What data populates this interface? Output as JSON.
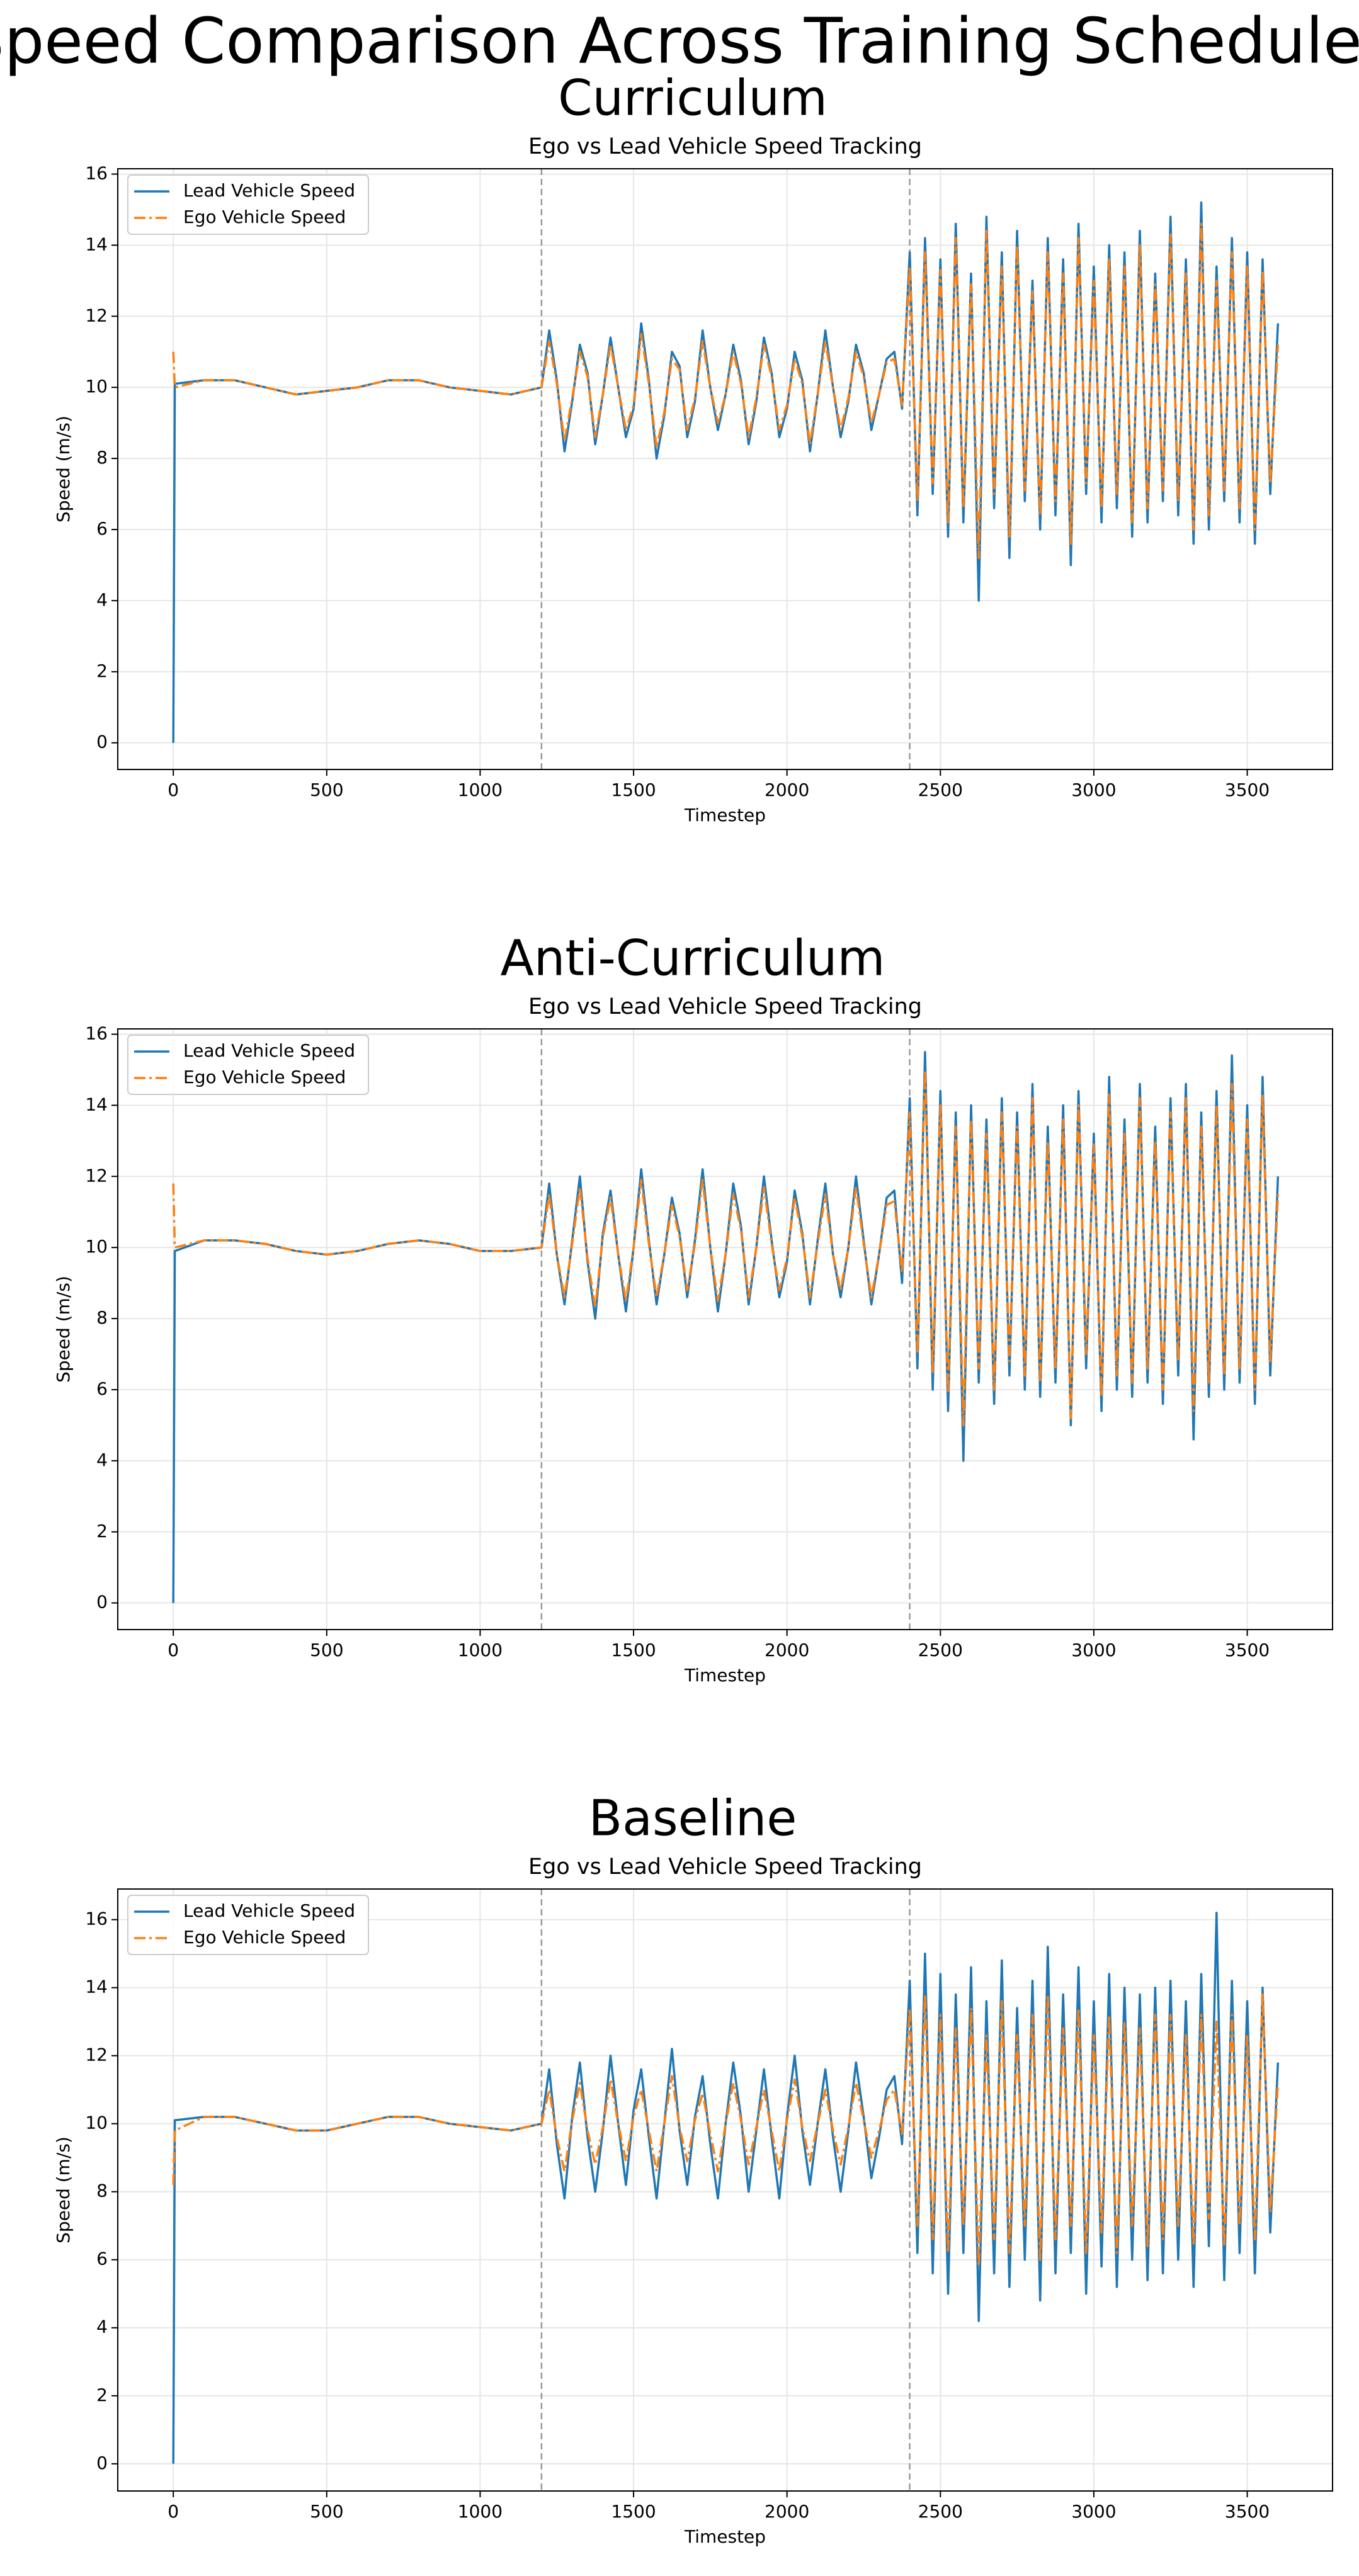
{
  "title": "Speed Comparison Across Training Schedules",
  "chart_data": [
    {
      "type": "line",
      "title": "Curriculum",
      "subtitle": "Ego vs Lead Vehicle Speed Tracking",
      "xlabel": "Timestep",
      "ylabel": "Speed (m/s)",
      "x": [
        0,
        5,
        100,
        200,
        300,
        400,
        500,
        600,
        700,
        800,
        900,
        1000,
        1100,
        1200,
        1225,
        1250,
        1275,
        1300,
        1325,
        1350,
        1375,
        1400,
        1425,
        1450,
        1475,
        1500,
        1525,
        1550,
        1575,
        1600,
        1625,
        1650,
        1675,
        1700,
        1725,
        1750,
        1775,
        1800,
        1825,
        1850,
        1875,
        1900,
        1925,
        1950,
        1975,
        2000,
        2025,
        2050,
        2075,
        2100,
        2125,
        2150,
        2175,
        2200,
        2225,
        2250,
        2275,
        2300,
        2325,
        2350,
        2375,
        2400,
        2425,
        2450,
        2475,
        2500,
        2525,
        2550,
        2575,
        2600,
        2625,
        2650,
        2675,
        2700,
        2725,
        2750,
        2775,
        2800,
        2825,
        2850,
        2875,
        2900,
        2925,
        2950,
        2975,
        3000,
        3025,
        3050,
        3075,
        3100,
        3125,
        3150,
        3175,
        3200,
        3225,
        3250,
        3275,
        3300,
        3325,
        3350,
        3375,
        3400,
        3425,
        3450,
        3475,
        3500,
        3525,
        3550,
        3575,
        3600
      ],
      "series": [
        {
          "name": "Lead Vehicle Speed",
          "color": "#1f77b4",
          "linestyle": "solid",
          "values": [
            0,
            10.1,
            10.2,
            10.2,
            10.0,
            9.8,
            9.9,
            10.0,
            10.2,
            10.2,
            10.0,
            9.9,
            9.8,
            10.0,
            11.6,
            10.2,
            8.2,
            9.6,
            11.2,
            10.4,
            8.4,
            9.8,
            11.4,
            10.0,
            8.6,
            9.4,
            11.8,
            10.2,
            8.0,
            9.2,
            11.0,
            10.6,
            8.6,
            9.6,
            11.6,
            10.0,
            8.8,
            9.8,
            11.2,
            10.2,
            8.4,
            9.6,
            11.4,
            10.4,
            8.6,
            9.4,
            11.0,
            10.2,
            8.2,
            9.8,
            11.6,
            10.0,
            8.6,
            9.6,
            11.2,
            10.4,
            8.8,
            9.8,
            10.8,
            11.0,
            9.4,
            13.8,
            6.4,
            14.2,
            7.0,
            13.6,
            5.8,
            14.6,
            6.2,
            13.2,
            4.0,
            14.8,
            6.6,
            13.8,
            5.2,
            14.4,
            6.8,
            13.0,
            6.0,
            14.2,
            6.4,
            13.6,
            5.0,
            14.6,
            7.0,
            13.4,
            6.2,
            14.0,
            6.6,
            13.8,
            5.8,
            14.4,
            6.2,
            13.2,
            6.8,
            14.8,
            6.4,
            13.6,
            5.6,
            15.2,
            6.0,
            13.4,
            6.8,
            14.2,
            6.2,
            13.8,
            5.6,
            13.6,
            7.0,
            11.8
          ]
        },
        {
          "name": "Ego Vehicle Speed",
          "color": "#ff7f0e",
          "linestyle": "dashdot",
          "values": [
            11.0,
            10.0,
            10.2,
            10.2,
            10.0,
            9.8,
            9.9,
            10.0,
            10.2,
            10.2,
            10.0,
            9.9,
            9.8,
            10.0,
            11.3,
            10.1,
            8.5,
            9.7,
            11.0,
            10.3,
            8.6,
            9.8,
            11.2,
            10.0,
            8.8,
            9.5,
            11.5,
            10.1,
            8.3,
            9.3,
            10.8,
            10.5,
            8.8,
            9.7,
            11.3,
            10.0,
            9.0,
            9.8,
            11.0,
            10.1,
            8.6,
            9.7,
            11.2,
            10.3,
            8.8,
            9.5,
            10.8,
            10.1,
            8.4,
            9.8,
            11.3,
            10.0,
            8.8,
            9.7,
            11.0,
            10.3,
            9.0,
            9.8,
            10.7,
            10.8,
            9.5,
            13.4,
            6.8,
            13.8,
            7.3,
            13.3,
            6.2,
            14.2,
            6.6,
            12.9,
            5.2,
            14.4,
            7.0,
            13.4,
            5.8,
            14.0,
            7.1,
            12.7,
            6.4,
            13.8,
            6.8,
            13.2,
            5.6,
            14.2,
            7.3,
            13.0,
            6.6,
            13.6,
            7.0,
            13.4,
            6.2,
            14.0,
            6.6,
            12.9,
            7.1,
            14.3,
            6.8,
            13.2,
            6.0,
            14.6,
            6.4,
            13.0,
            7.1,
            13.8,
            6.6,
            13.4,
            6.0,
            13.3,
            7.3,
            11.2
          ]
        }
      ],
      "xlim": [
        -181,
        3778
      ],
      "ylim": [
        -0.75,
        16.15
      ],
      "xticks": [
        0,
        500,
        1000,
        1500,
        2000,
        2500,
        3000,
        3500
      ],
      "yticks": [
        0,
        2,
        4,
        6,
        8,
        10,
        12,
        14,
        16
      ],
      "vlines": [
        1200,
        2400
      ],
      "grid": true,
      "legend": "upper left"
    },
    {
      "type": "line",
      "title": "Anti-Curriculum",
      "subtitle": "Ego vs Lead Vehicle Speed Tracking",
      "xlabel": "Timestep",
      "ylabel": "Speed (m/s)",
      "x": [
        0,
        5,
        100,
        200,
        300,
        400,
        500,
        600,
        700,
        800,
        900,
        1000,
        1100,
        1200,
        1225,
        1250,
        1275,
        1300,
        1325,
        1350,
        1375,
        1400,
        1425,
        1450,
        1475,
        1500,
        1525,
        1550,
        1575,
        1600,
        1625,
        1650,
        1675,
        1700,
        1725,
        1750,
        1775,
        1800,
        1825,
        1850,
        1875,
        1900,
        1925,
        1950,
        1975,
        2000,
        2025,
        2050,
        2075,
        2100,
        2125,
        2150,
        2175,
        2200,
        2225,
        2250,
        2275,
        2300,
        2325,
        2350,
        2375,
        2400,
        2425,
        2450,
        2475,
        2500,
        2525,
        2550,
        2575,
        2600,
        2625,
        2650,
        2675,
        2700,
        2725,
        2750,
        2775,
        2800,
        2825,
        2850,
        2875,
        2900,
        2925,
        2950,
        2975,
        3000,
        3025,
        3050,
        3075,
        3100,
        3125,
        3150,
        3175,
        3200,
        3225,
        3250,
        3275,
        3300,
        3325,
        3350,
        3375,
        3400,
        3425,
        3450,
        3475,
        3500,
        3525,
        3550,
        3575,
        3600
      ],
      "series": [
        {
          "name": "Lead Vehicle Speed",
          "color": "#1f77b4",
          "linestyle": "solid",
          "values": [
            0,
            9.9,
            10.2,
            10.2,
            10.1,
            9.9,
            9.8,
            9.9,
            10.1,
            10.2,
            10.1,
            9.9,
            9.9,
            10.0,
            11.8,
            9.8,
            8.4,
            10.2,
            12.0,
            9.6,
            8.0,
            10.4,
            11.6,
            9.8,
            8.2,
            10.0,
            12.2,
            10.2,
            8.4,
            9.8,
            11.4,
            10.4,
            8.6,
            10.2,
            12.2,
            10.0,
            8.2,
            9.8,
            11.8,
            10.6,
            8.4,
            10.0,
            12.0,
            10.2,
            8.6,
            9.6,
            11.6,
            10.4,
            8.4,
            10.2,
            11.8,
            9.8,
            8.6,
            10.0,
            12.0,
            10.2,
            8.4,
            9.8,
            11.4,
            11.6,
            9.0,
            14.2,
            6.6,
            15.5,
            6.0,
            14.4,
            5.4,
            13.8,
            4.0,
            14.0,
            6.2,
            13.6,
            5.6,
            14.2,
            6.4,
            13.8,
            6.0,
            14.6,
            5.8,
            13.4,
            6.2,
            14.0,
            5.0,
            14.4,
            6.6,
            13.2,
            5.4,
            14.8,
            6.0,
            13.6,
            5.8,
            14.6,
            6.2,
            13.4,
            5.6,
            14.2,
            6.4,
            14.6,
            4.6,
            13.8,
            5.8,
            14.4,
            6.0,
            15.4,
            6.2,
            14.0,
            5.6,
            14.8,
            6.4,
            12.0
          ]
        },
        {
          "name": "Ego Vehicle Speed",
          "color": "#ff7f0e",
          "linestyle": "dashdot",
          "values": [
            11.8,
            10.0,
            10.2,
            10.2,
            10.1,
            9.9,
            9.8,
            9.9,
            10.1,
            10.2,
            10.1,
            9.9,
            9.9,
            10.0,
            11.5,
            9.8,
            8.6,
            10.1,
            11.7,
            9.7,
            8.3,
            10.3,
            11.4,
            9.8,
            8.5,
            10.0,
            11.9,
            10.1,
            8.6,
            9.8,
            11.2,
            10.3,
            8.8,
            10.1,
            11.9,
            10.0,
            8.5,
            9.8,
            11.5,
            10.5,
            8.6,
            10.0,
            11.7,
            10.1,
            8.8,
            9.7,
            11.4,
            10.3,
            8.6,
            10.1,
            11.5,
            9.8,
            8.8,
            10.0,
            11.7,
            10.1,
            8.6,
            9.8,
            11.2,
            11.3,
            9.3,
            13.8,
            7.0,
            15.0,
            6.5,
            14.0,
            5.9,
            13.4,
            5.0,
            13.6,
            6.6,
            13.2,
            6.0,
            13.8,
            6.8,
            13.4,
            6.4,
            14.2,
            6.2,
            13.0,
            6.6,
            13.6,
            5.2,
            14.0,
            7.0,
            12.9,
            5.8,
            14.3,
            6.4,
            13.2,
            6.2,
            14.2,
            6.6,
            13.0,
            6.0,
            13.8,
            6.8,
            14.2,
            5.4,
            13.4,
            6.2,
            14.0,
            6.4,
            14.6,
            6.6,
            13.6,
            6.0,
            14.3,
            6.8,
            11.5
          ]
        }
      ],
      "xlim": [
        -181,
        3778
      ],
      "ylim": [
        -0.75,
        16.15
      ],
      "xticks": [
        0,
        500,
        1000,
        1500,
        2000,
        2500,
        3000,
        3500
      ],
      "yticks": [
        0,
        2,
        4,
        6,
        8,
        10,
        12,
        14,
        16
      ],
      "vlines": [
        1200,
        2400
      ],
      "grid": true,
      "legend": "upper left"
    },
    {
      "type": "line",
      "title": "Baseline",
      "subtitle": "Ego vs Lead Vehicle Speed Tracking",
      "xlabel": "Timestep",
      "ylabel": "Speed (m/s)",
      "x": [
        0,
        5,
        100,
        200,
        300,
        400,
        500,
        600,
        700,
        800,
        900,
        1000,
        1100,
        1200,
        1225,
        1250,
        1275,
        1300,
        1325,
        1350,
        1375,
        1400,
        1425,
        1450,
        1475,
        1500,
        1525,
        1550,
        1575,
        1600,
        1625,
        1650,
        1675,
        1700,
        1725,
        1750,
        1775,
        1800,
        1825,
        1850,
        1875,
        1900,
        1925,
        1950,
        1975,
        2000,
        2025,
        2050,
        2075,
        2100,
        2125,
        2150,
        2175,
        2200,
        2225,
        2250,
        2275,
        2300,
        2325,
        2350,
        2375,
        2400,
        2425,
        2450,
        2475,
        2500,
        2525,
        2550,
        2575,
        2600,
        2625,
        2650,
        2675,
        2700,
        2725,
        2750,
        2775,
        2800,
        2825,
        2850,
        2875,
        2900,
        2925,
        2950,
        2975,
        3000,
        3025,
        3050,
        3075,
        3100,
        3125,
        3150,
        3175,
        3200,
        3225,
        3250,
        3275,
        3300,
        3325,
        3350,
        3375,
        3400,
        3425,
        3450,
        3475,
        3500,
        3525,
        3550,
        3575,
        3600
      ],
      "series": [
        {
          "name": "Lead Vehicle Speed",
          "color": "#1f77b4",
          "linestyle": "solid",
          "values": [
            0,
            10.1,
            10.2,
            10.2,
            10.0,
            9.8,
            9.8,
            10.0,
            10.2,
            10.2,
            10.0,
            9.9,
            9.8,
            10.0,
            11.6,
            9.4,
            7.8,
            10.2,
            11.8,
            9.6,
            8.0,
            9.8,
            12.0,
            10.0,
            8.2,
            10.4,
            11.6,
            9.6,
            7.8,
            10.0,
            12.2,
            9.8,
            8.2,
            10.2,
            11.4,
            9.4,
            7.8,
            10.0,
            11.8,
            10.2,
            8.0,
            9.8,
            11.6,
            9.6,
            7.8,
            10.2,
            12.0,
            9.8,
            8.2,
            10.0,
            11.6,
            9.6,
            8.0,
            9.8,
            11.8,
            10.2,
            8.4,
            9.6,
            11.0,
            11.4,
            9.4,
            14.2,
            6.2,
            15.0,
            5.6,
            14.4,
            5.0,
            13.8,
            6.2,
            14.6,
            4.2,
            13.6,
            5.6,
            14.8,
            5.2,
            13.4,
            6.0,
            14.2,
            4.8,
            15.2,
            5.6,
            13.8,
            6.2,
            14.6,
            5.0,
            13.6,
            5.8,
            14.4,
            5.2,
            14.0,
            6.0,
            13.8,
            5.4,
            14.0,
            5.6,
            14.2,
            6.0,
            13.6,
            5.2,
            14.4,
            6.4,
            16.2,
            5.4,
            14.2,
            6.2,
            13.6,
            5.6,
            14.0,
            6.8,
            11.8
          ]
        },
        {
          "name": "Ego Vehicle Speed",
          "color": "#ff7f0e",
          "linestyle": "dashdot",
          "values": [
            8.2,
            9.8,
            10.2,
            10.2,
            10.0,
            9.8,
            9.8,
            10.0,
            10.2,
            10.2,
            10.0,
            9.9,
            9.8,
            10.0,
            11.0,
            9.6,
            8.6,
            10.1,
            11.2,
            9.8,
            8.8,
            9.9,
            11.3,
            10.0,
            8.9,
            10.2,
            11.0,
            9.8,
            8.6,
            10.0,
            11.4,
            9.9,
            8.9,
            10.1,
            10.9,
            9.7,
            8.6,
            10.0,
            11.2,
            10.1,
            8.8,
            9.9,
            11.0,
            9.8,
            8.6,
            10.1,
            11.3,
            9.9,
            8.9,
            10.0,
            11.0,
            9.8,
            8.8,
            9.9,
            11.2,
            10.1,
            9.0,
            9.8,
            10.7,
            11.0,
            9.7,
            13.4,
            7.0,
            13.8,
            6.6,
            13.2,
            6.2,
            12.8,
            7.0,
            13.4,
            5.8,
            12.6,
            6.6,
            13.6,
            6.2,
            12.6,
            7.0,
            13.2,
            6.0,
            13.8,
            6.6,
            12.8,
            7.0,
            13.4,
            6.2,
            12.6,
            6.8,
            13.2,
            6.2,
            13.0,
            7.0,
            12.8,
            6.4,
            13.2,
            6.6,
            13.2,
            7.0,
            12.6,
            6.4,
            13.2,
            7.2,
            13.0,
            6.4,
            13.2,
            7.0,
            12.6,
            6.6,
            13.8,
            7.4,
            11.2
          ]
        }
      ],
      "xlim": [
        -181,
        3778
      ],
      "ylim": [
        -0.8,
        16.9
      ],
      "xticks": [
        0,
        500,
        1000,
        1500,
        2000,
        2500,
        3000,
        3500
      ],
      "yticks": [
        0,
        2,
        4,
        6,
        8,
        10,
        12,
        14,
        16
      ],
      "vlines": [
        1200,
        2400
      ],
      "grid": true,
      "legend": "upper left"
    }
  ]
}
